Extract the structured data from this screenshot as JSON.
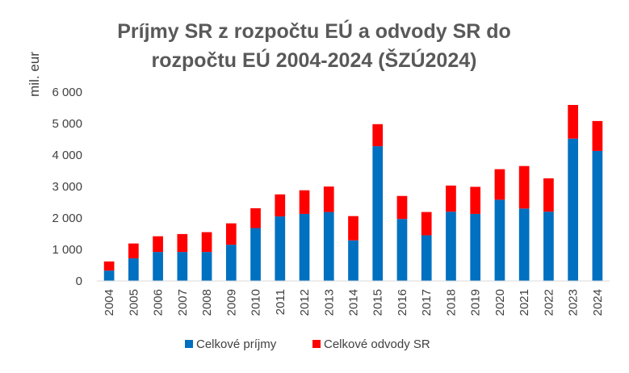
{
  "chart_data": {
    "type": "bar",
    "stacked": true,
    "title": [
      "Príjmy SR z rozpočtu EÚ a odvody SR do",
      "rozpočtu EÚ 2004-2024  (ŠZÚ2024)"
    ],
    "xlabel": "",
    "ylabel": "mil. eur",
    "ylim": [
      0,
      6000
    ],
    "yticks": [
      0,
      1000,
      2000,
      3000,
      4000,
      5000,
      6000
    ],
    "ytick_labels": [
      "0",
      "1 000",
      "2 000",
      "3 000",
      "4 000",
      "5 000",
      "6 000"
    ],
    "grid": false,
    "legend_position": "bottom",
    "categories": [
      "2004",
      "2005",
      "2006",
      "2007",
      "2008",
      "2009",
      "2010",
      "2011",
      "2012",
      "2013",
      "2014",
      "2015",
      "2016",
      "2017",
      "2018",
      "2019",
      "2020",
      "2021",
      "2022",
      "2023",
      "2024"
    ],
    "series": [
      {
        "name": "Celkové príjmy",
        "color": "#0070C0",
        "values": [
          330,
          720,
          920,
          920,
          920,
          1150,
          1680,
          2050,
          2130,
          2190,
          1290,
          4280,
          1970,
          1450,
          2200,
          2130,
          2580,
          2300,
          2200,
          4520,
          4130
        ]
      },
      {
        "name": "Celkové odvody SR",
        "color": "#FF0000",
        "values": [
          290,
          470,
          500,
          570,
          630,
          680,
          630,
          700,
          750,
          810,
          770,
          700,
          730,
          740,
          830,
          860,
          970,
          1350,
          1060,
          1070,
          950
        ]
      }
    ]
  }
}
